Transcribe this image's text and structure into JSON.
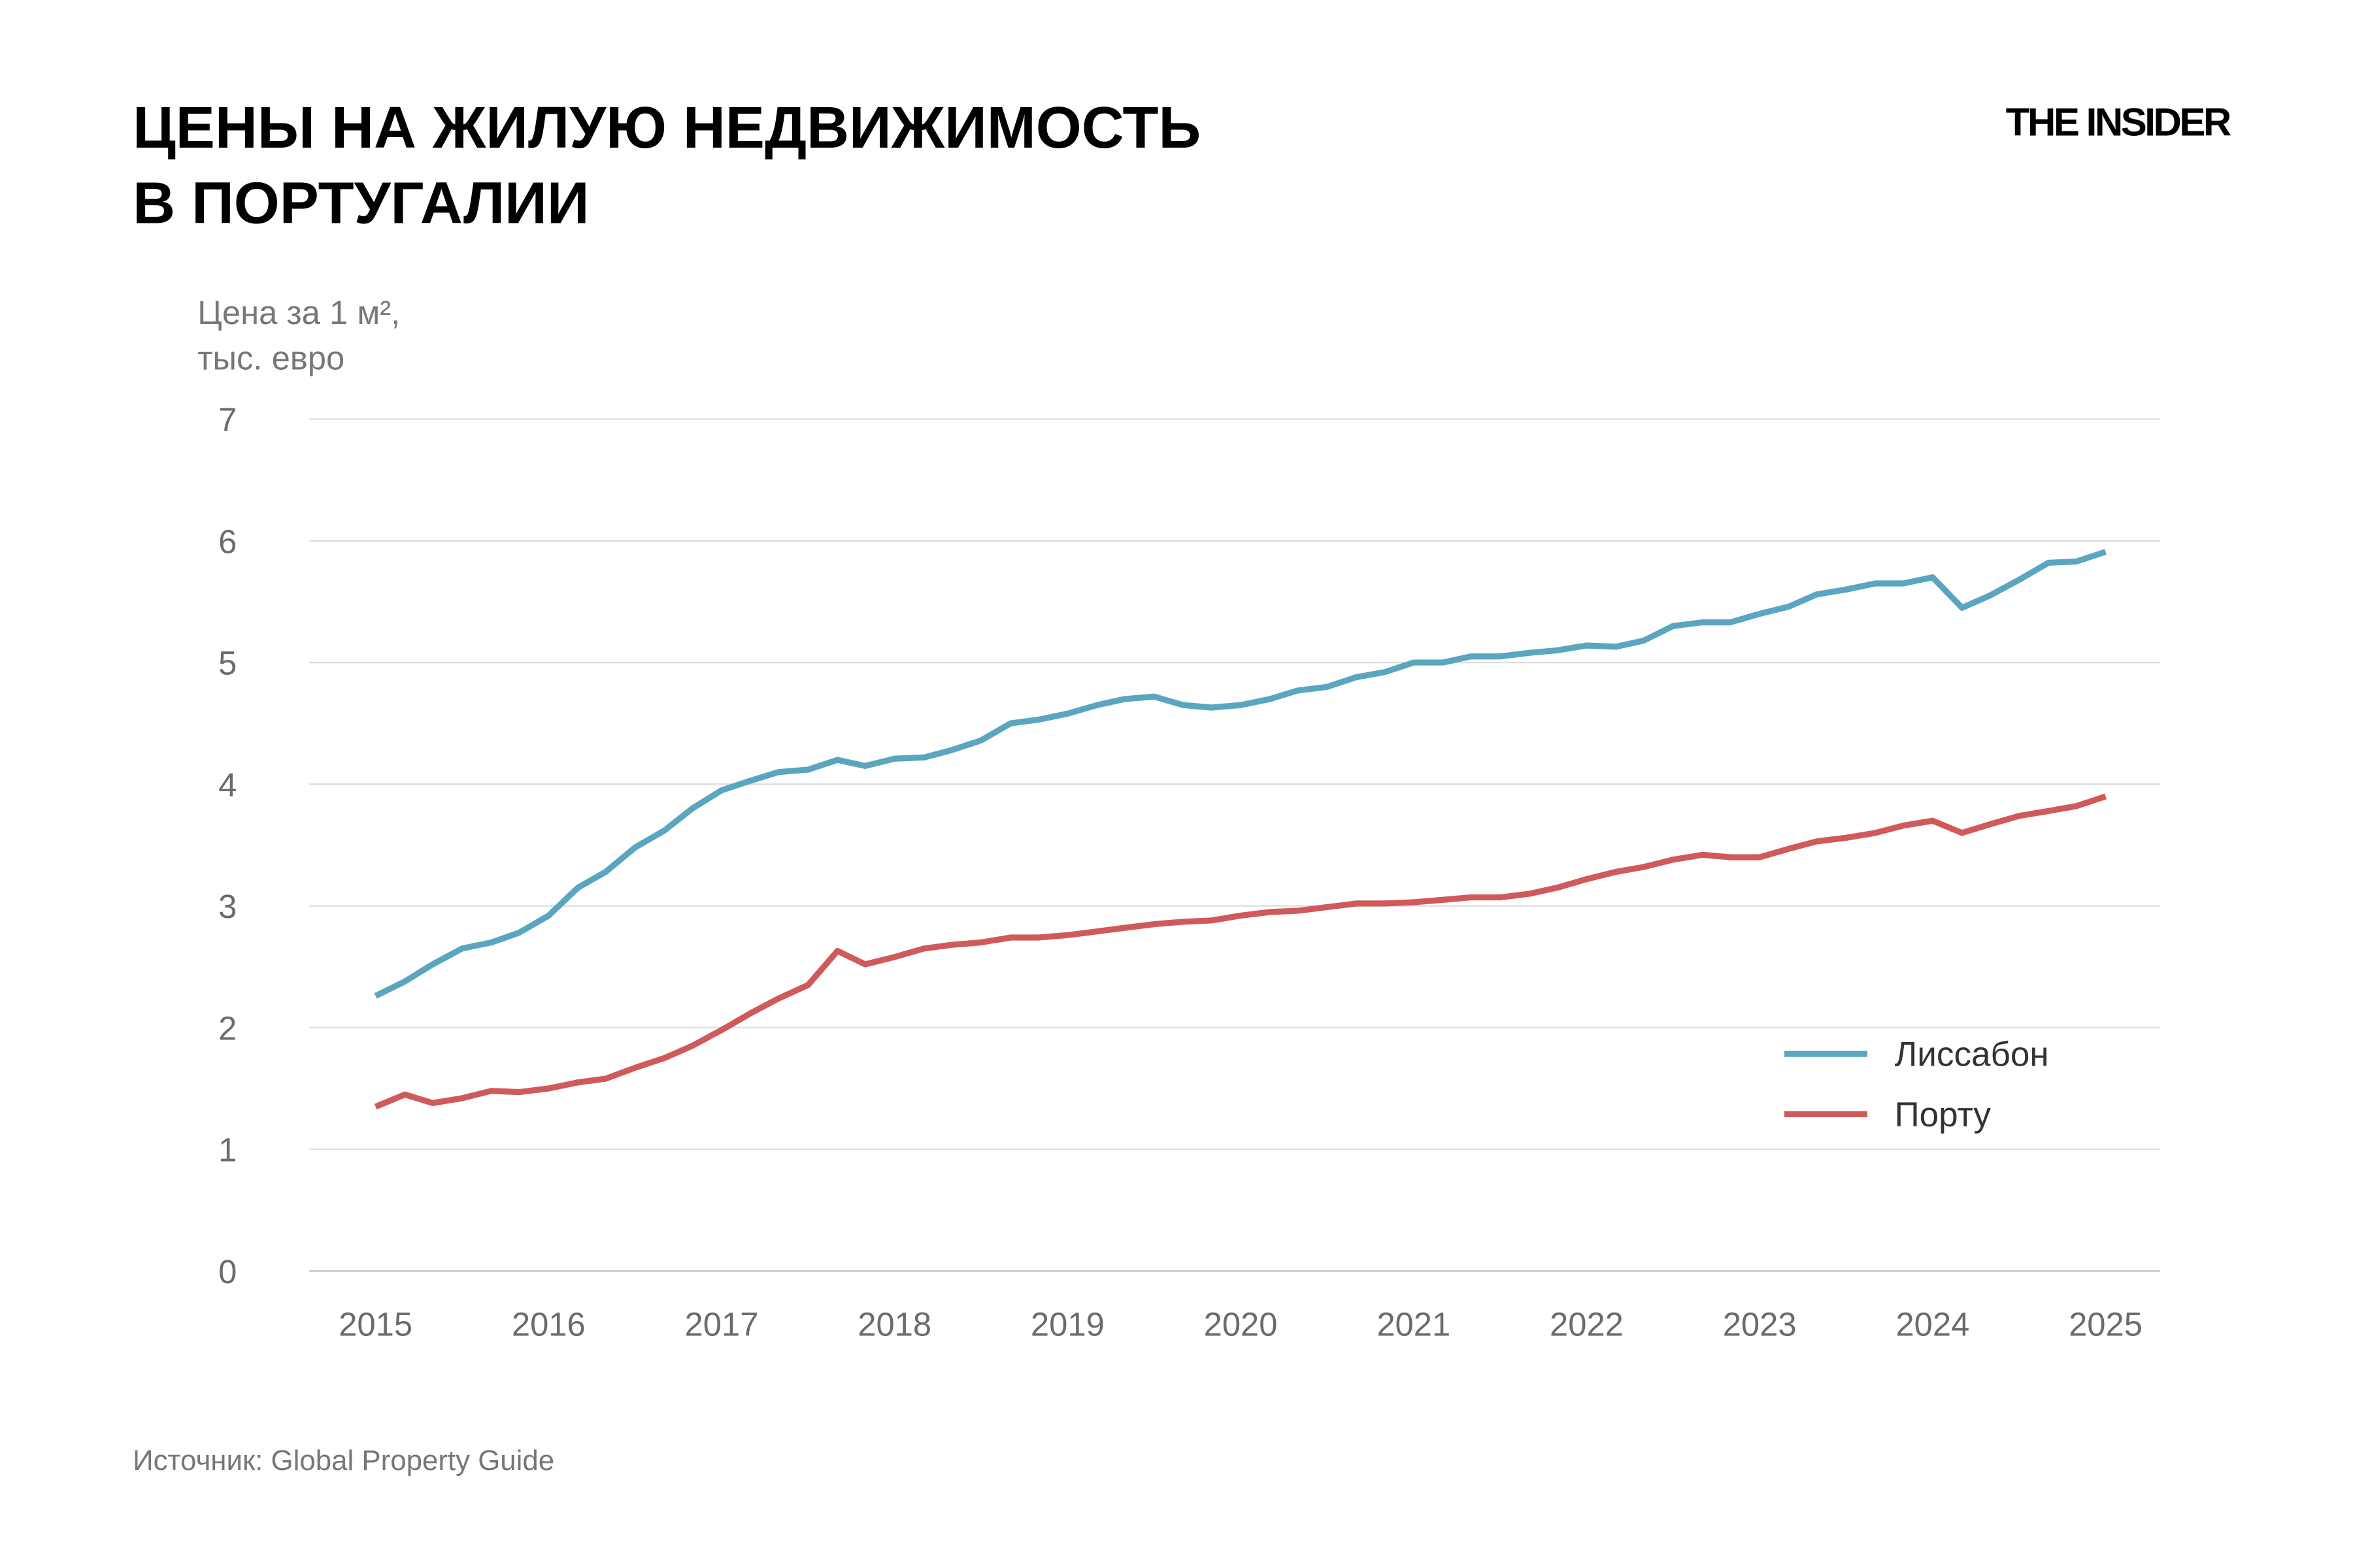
{
  "chart_data": {
    "type": "line",
    "title": [
      "ЦЕНЫ НА ЖИЛУЮ НЕДВИЖИМОСТЬ",
      "В ПОРТУГАЛИИ"
    ],
    "brand": "THE INSIDER",
    "y_label": [
      "Цена за 1 м²,",
      "тыс. евро"
    ],
    "source": "Источник: Global Property Guide",
    "x": [
      2015,
      2015.17,
      2015.33,
      2015.5,
      2015.67,
      2015.83,
      2016,
      2016.17,
      2016.33,
      2016.5,
      2016.67,
      2016.83,
      2017,
      2017.17,
      2017.33,
      2017.5,
      2017.67,
      2017.83,
      2018,
      2018.17,
      2018.33,
      2018.5,
      2018.67,
      2018.83,
      2019,
      2019.17,
      2019.33,
      2019.5,
      2019.67,
      2019.83,
      2020,
      2020.17,
      2020.33,
      2020.5,
      2020.67,
      2020.83,
      2021,
      2021.17,
      2021.33,
      2021.5,
      2021.67,
      2021.83,
      2022,
      2022.17,
      2022.33,
      2022.5,
      2022.67,
      2022.83,
      2023,
      2023.17,
      2023.33,
      2023.5,
      2023.67,
      2023.83,
      2024,
      2024.17,
      2024.33,
      2024.5,
      2024.67,
      2024.83,
      2025
    ],
    "series": [
      {
        "name": "Лиссабон",
        "color": "#5aa5c0",
        "values": [
          2.26,
          2.38,
          2.52,
          2.65,
          2.7,
          2.78,
          2.92,
          3.15,
          3.28,
          3.48,
          3.62,
          3.8,
          3.95,
          4.03,
          4.1,
          4.12,
          4.2,
          4.15,
          4.21,
          4.22,
          4.28,
          4.36,
          4.5,
          4.53,
          4.58,
          4.65,
          4.7,
          4.72,
          4.65,
          4.63,
          4.65,
          4.7,
          4.77,
          4.8,
          4.88,
          4.92,
          5.0,
          5.0,
          5.05,
          5.05,
          5.08,
          5.1,
          5.14,
          5.13,
          5.18,
          5.3,
          5.33,
          5.33,
          5.4,
          5.46,
          5.56,
          5.6,
          5.65,
          5.65,
          5.7,
          5.45,
          5.55,
          5.68,
          5.82,
          5.83,
          5.91
        ]
      },
      {
        "name": "Порту",
        "color": "#d05a5a",
        "values": [
          1.35,
          1.45,
          1.38,
          1.42,
          1.48,
          1.47,
          1.5,
          1.55,
          1.58,
          1.67,
          1.75,
          1.85,
          1.98,
          2.12,
          2.24,
          2.35,
          2.63,
          2.52,
          2.58,
          2.65,
          2.68,
          2.7,
          2.74,
          2.74,
          2.76,
          2.79,
          2.82,
          2.85,
          2.87,
          2.88,
          2.92,
          2.95,
          2.96,
          2.99,
          3.02,
          3.02,
          3.03,
          3.05,
          3.07,
          3.07,
          3.1,
          3.15,
          3.22,
          3.28,
          3.32,
          3.38,
          3.42,
          3.4,
          3.4,
          3.47,
          3.53,
          3.56,
          3.6,
          3.66,
          3.7,
          3.6,
          3.67,
          3.74,
          3.78,
          3.82,
          3.9
        ]
      }
    ],
    "xlim": [
      2015,
      2025
    ],
    "xticks": [
      2015,
      2016,
      2017,
      2018,
      2019,
      2020,
      2021,
      2022,
      2023,
      2024,
      2025
    ],
    "ylim": [
      0,
      7
    ],
    "yticks": [
      0,
      1,
      2,
      3,
      4,
      5,
      6,
      7
    ],
    "grid": true,
    "legend": "lower right"
  }
}
